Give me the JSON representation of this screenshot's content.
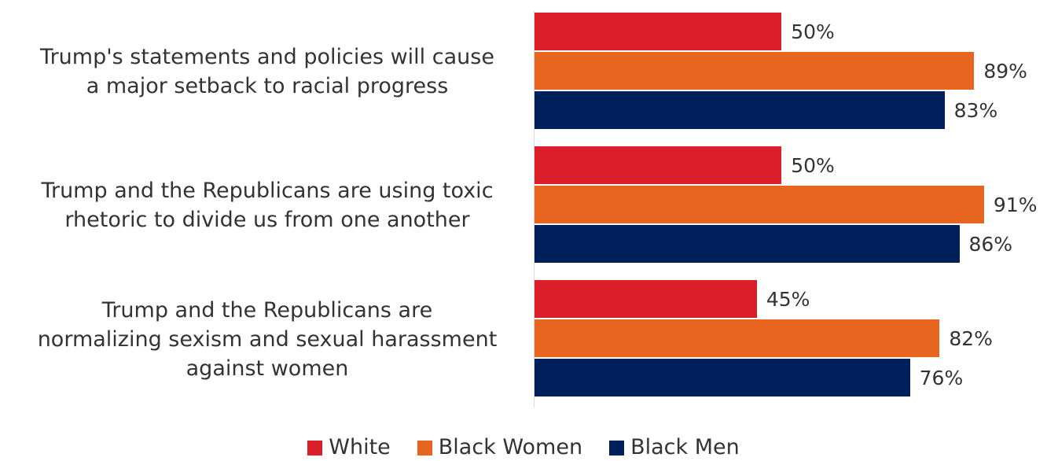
{
  "chart_data": {
    "type": "bar",
    "orientation": "horizontal",
    "categories": [
      "Trump's statements and policies will cause a major setback to racial progress",
      "Trump and the Republicans are using toxic rhetoric to divide us from one another",
      "Trump and the Republicans are normalizing sexism and sexual harassment against women"
    ],
    "category_lines": [
      [
        "Trump's statements and policies will cause",
        "a major setback to racial progress"
      ],
      [
        "Trump and the Republicans are using toxic",
        "rhetoric to divide us from one another"
      ],
      [
        "Trump and the Republicans are",
        "normalizing sexism and sexual harassment",
        "against women"
      ]
    ],
    "series": [
      {
        "name": "White",
        "color": "#db1f2a",
        "values": [
          50,
          50,
          45
        ],
        "labels": [
          "50%",
          "50%",
          "45%"
        ]
      },
      {
        "name": "Black Women",
        "color": "#e8651f",
        "values": [
          89,
          91,
          82
        ],
        "labels": [
          "89%",
          "91%",
          "82%"
        ]
      },
      {
        "name": "Black Men",
        "color": "#00205b",
        "values": [
          83,
          86,
          76
        ],
        "labels": [
          "83%",
          "86%",
          "76%"
        ]
      }
    ],
    "xlim": [
      0,
      100
    ],
    "unit": "%",
    "grid": false,
    "legend_position": "bottom"
  }
}
